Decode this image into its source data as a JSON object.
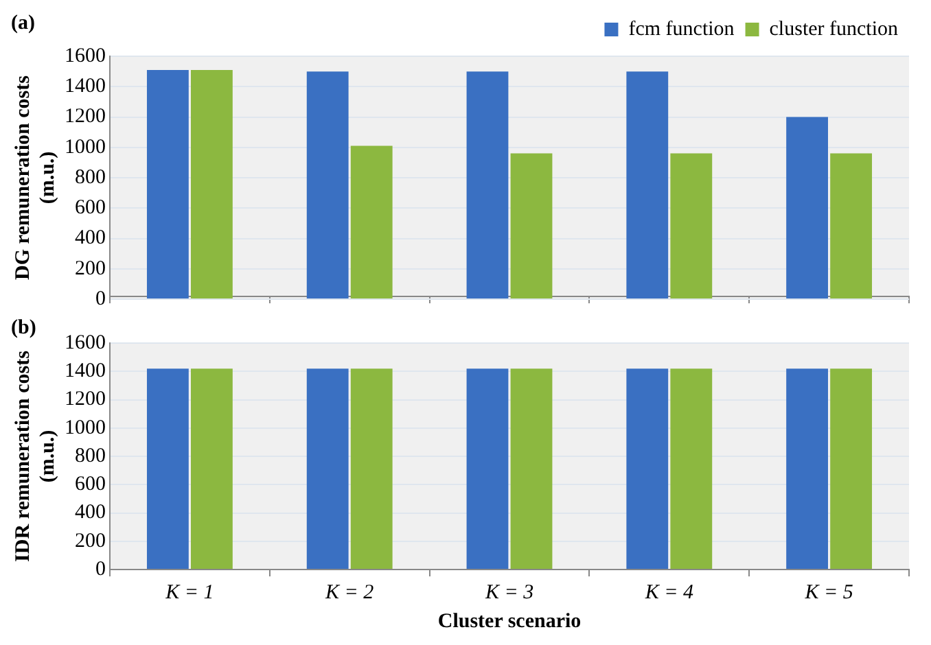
{
  "chart_data": [
    {
      "type": "bar",
      "title": "(a)",
      "ylabel": "DG remuneration costs (m.u.)",
      "categories": [
        null,
        null,
        null,
        null,
        null
      ],
      "series": [
        {
          "name": "fcm function",
          "color": "#3a70c2",
          "values": [
            1510,
            1500,
            1500,
            1500,
            1200
          ]
        },
        {
          "name": "cluster function",
          "color": "#8cb840",
          "values": [
            1510,
            1010,
            960,
            960,
            960
          ]
        }
      ],
      "ylim": [
        0,
        1600
      ],
      "yticks": [
        0,
        200,
        400,
        600,
        800,
        1000,
        1200,
        1400,
        1600
      ],
      "grid": "y",
      "legend": "top right",
      "tick_labels": "y"
    },
    {
      "type": "bar",
      "title": "(b)",
      "ylabel": "IDR remuneration costs (m.u.)",
      "xlabel": "Cluster scenario",
      "categories": [
        "K = 1",
        "K = 2",
        "K = 3",
        "K = 4",
        "K = 5"
      ],
      "series": [
        {
          "color": "#3a70c2",
          "values": [
            1420,
            1420,
            1420,
            1420,
            1420
          ]
        },
        {
          "color": "#8cb840",
          "values": [
            1420,
            1420,
            1420,
            1420,
            1420
          ]
        }
      ],
      "ylim": [
        0,
        1600
      ],
      "yticks": [
        0,
        200,
        400,
        600,
        800,
        1000,
        1200,
        1400,
        1600
      ],
      "grid": "y"
    }
  ]
}
